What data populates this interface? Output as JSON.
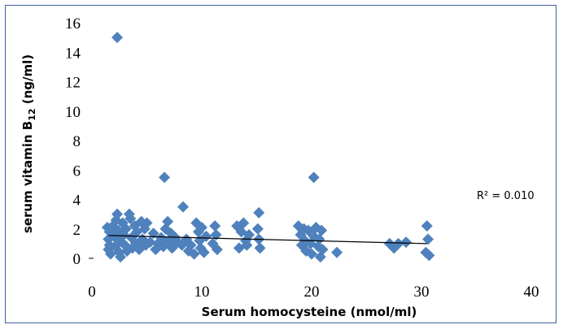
{
  "chart_data": {
    "type": "scatter",
    "title": "",
    "xlabel": "Serum homocysteine (nmol/ml)",
    "ylabel_main": "serum vitamin B",
    "ylabel_sub": "12",
    "ylabel_unit": " (ng/ml)",
    "xlim": [
      0,
      40
    ],
    "ylim": [
      0,
      16
    ],
    "x_ticks": [
      "0",
      "10",
      "20",
      "30",
      "40"
    ],
    "y_ticks": [
      "0",
      "2",
      "4",
      "6",
      "8",
      "10",
      "12",
      "14",
      "16"
    ],
    "grid": false,
    "legend": "none",
    "marker_color": "#4f81bd",
    "trendline": {
      "x": [
        1.5,
        30.5
      ],
      "y": [
        1.55,
        1.0
      ],
      "color": "#000000"
    },
    "annotation": "R² = 0.010",
    "points": [
      {
        "x": 2.3,
        "y": 15.0
      },
      {
        "x": 6.6,
        "y": 5.5
      },
      {
        "x": 20.2,
        "y": 5.5
      },
      {
        "x": 8.3,
        "y": 3.5
      },
      {
        "x": 15.2,
        "y": 3.1
      },
      {
        "x": 2.3,
        "y": 3.0
      },
      {
        "x": 3.4,
        "y": 3.0
      },
      {
        "x": 1.4,
        "y": 2.1
      },
      {
        "x": 1.6,
        "y": 1.8
      },
      {
        "x": 1.5,
        "y": 1.3
      },
      {
        "x": 1.6,
        "y": 0.9
      },
      {
        "x": 1.5,
        "y": 0.6
      },
      {
        "x": 1.7,
        "y": 0.3
      },
      {
        "x": 1.9,
        "y": 2.2
      },
      {
        "x": 2.0,
        "y": 1.5
      },
      {
        "x": 2.1,
        "y": 0.8
      },
      {
        "x": 2.2,
        "y": 2.6
      },
      {
        "x": 2.4,
        "y": 1.9
      },
      {
        "x": 2.5,
        "y": 1.2
      },
      {
        "x": 2.5,
        "y": 0.4
      },
      {
        "x": 2.6,
        "y": 0.1
      },
      {
        "x": 2.8,
        "y": 2.4
      },
      {
        "x": 2.9,
        "y": 1.6
      },
      {
        "x": 3.0,
        "y": 0.9
      },
      {
        "x": 3.1,
        "y": 2.0
      },
      {
        "x": 3.2,
        "y": 0.5
      },
      {
        "x": 3.5,
        "y": 2.7
      },
      {
        "x": 3.6,
        "y": 1.4
      },
      {
        "x": 3.7,
        "y": 0.7
      },
      {
        "x": 3.9,
        "y": 2.2
      },
      {
        "x": 4.0,
        "y": 1.0
      },
      {
        "x": 4.1,
        "y": 1.8
      },
      {
        "x": 4.3,
        "y": 0.6
      },
      {
        "x": 4.5,
        "y": 2.5
      },
      {
        "x": 4.6,
        "y": 1.3
      },
      {
        "x": 4.8,
        "y": 2.0
      },
      {
        "x": 4.9,
        "y": 0.9
      },
      {
        "x": 5.0,
        "y": 2.4
      },
      {
        "x": 5.3,
        "y": 1.1
      },
      {
        "x": 5.6,
        "y": 1.7
      },
      {
        "x": 5.8,
        "y": 0.6
      },
      {
        "x": 6.0,
        "y": 1.0
      },
      {
        "x": 6.3,
        "y": 1.4
      },
      {
        "x": 6.5,
        "y": 0.8
      },
      {
        "x": 6.7,
        "y": 2.0
      },
      {
        "x": 6.9,
        "y": 2.5
      },
      {
        "x": 7.0,
        "y": 1.2
      },
      {
        "x": 7.2,
        "y": 1.7
      },
      {
        "x": 7.3,
        "y": 0.7
      },
      {
        "x": 7.6,
        "y": 1.4
      },
      {
        "x": 7.8,
        "y": 1.1
      },
      {
        "x": 8.2,
        "y": 0.9
      },
      {
        "x": 8.6,
        "y": 1.3
      },
      {
        "x": 8.8,
        "y": 0.5
      },
      {
        "x": 9.0,
        "y": 0.9
      },
      {
        "x": 9.3,
        "y": 0.3
      },
      {
        "x": 9.5,
        "y": 2.4
      },
      {
        "x": 9.7,
        "y": 1.8
      },
      {
        "x": 9.8,
        "y": 1.2
      },
      {
        "x": 9.9,
        "y": 0.7
      },
      {
        "x": 10.0,
        "y": 2.1
      },
      {
        "x": 10.2,
        "y": 0.4
      },
      {
        "x": 10.4,
        "y": 1.5
      },
      {
        "x": 11.0,
        "y": 1.0
      },
      {
        "x": 11.2,
        "y": 2.2
      },
      {
        "x": 11.3,
        "y": 1.6
      },
      {
        "x": 11.4,
        "y": 0.6
      },
      {
        "x": 13.2,
        "y": 2.2
      },
      {
        "x": 13.4,
        "y": 0.7
      },
      {
        "x": 13.6,
        "y": 1.8
      },
      {
        "x": 13.8,
        "y": 2.4
      },
      {
        "x": 14.0,
        "y": 1.2
      },
      {
        "x": 14.1,
        "y": 0.9
      },
      {
        "x": 14.3,
        "y": 1.6
      },
      {
        "x": 15.1,
        "y": 2.0
      },
      {
        "x": 15.2,
        "y": 1.3
      },
      {
        "x": 15.3,
        "y": 0.7
      },
      {
        "x": 18.8,
        "y": 2.2
      },
      {
        "x": 19.0,
        "y": 1.6
      },
      {
        "x": 19.1,
        "y": 0.9
      },
      {
        "x": 19.3,
        "y": 2.0
      },
      {
        "x": 19.4,
        "y": 1.2
      },
      {
        "x": 19.5,
        "y": 0.5
      },
      {
        "x": 19.7,
        "y": 1.9
      },
      {
        "x": 19.9,
        "y": 1.0
      },
      {
        "x": 20.0,
        "y": 0.3
      },
      {
        "x": 20.2,
        "y": 1.5
      },
      {
        "x": 20.4,
        "y": 2.1
      },
      {
        "x": 20.6,
        "y": 0.8
      },
      {
        "x": 20.7,
        "y": 1.3
      },
      {
        "x": 20.9,
        "y": 1.9
      },
      {
        "x": 21.0,
        "y": 0.6
      },
      {
        "x": 20.8,
        "y": 0.1
      },
      {
        "x": 22.3,
        "y": 0.4
      },
      {
        "x": 27.1,
        "y": 1.0
      },
      {
        "x": 27.5,
        "y": 0.7
      },
      {
        "x": 27.9,
        "y": 1.0
      },
      {
        "x": 28.6,
        "y": 1.1
      },
      {
        "x": 30.5,
        "y": 2.2
      },
      {
        "x": 30.6,
        "y": 1.3
      },
      {
        "x": 30.4,
        "y": 0.4
      },
      {
        "x": 30.7,
        "y": 0.2
      }
    ]
  }
}
